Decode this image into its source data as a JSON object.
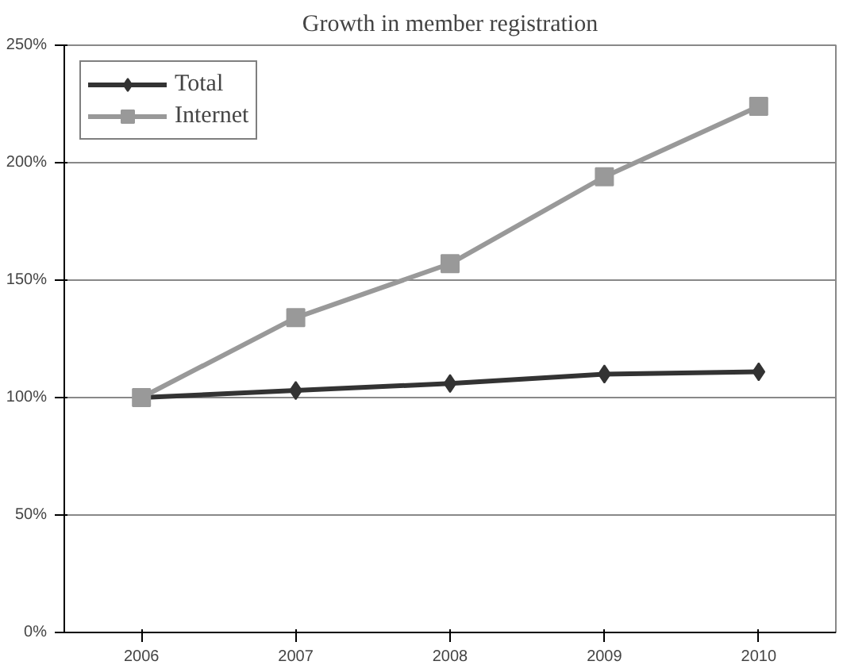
{
  "chart_data": {
    "type": "line",
    "title": "Growth in member registration",
    "categories": [
      "2006",
      "2007",
      "2008",
      "2009",
      "2010"
    ],
    "series": [
      {
        "name": "Total",
        "color": "#333333",
        "marker": "diamond",
        "values": [
          100,
          103,
          106,
          110,
          111
        ]
      },
      {
        "name": "Internet",
        "color": "#999999",
        "marker": "square",
        "values": [
          100,
          134,
          157,
          194,
          224
        ]
      }
    ],
    "ylim": [
      0,
      250
    ],
    "yticks": [
      {
        "value": 0,
        "label": "0%"
      },
      {
        "value": 50,
        "label": "50%"
      },
      {
        "value": 100,
        "label": "100%"
      },
      {
        "value": 150,
        "label": "150%"
      },
      {
        "value": 200,
        "label": "200%"
      },
      {
        "value": 250,
        "label": "250%"
      }
    ],
    "grid": "y",
    "legend": "top left",
    "line_style": "solid"
  }
}
